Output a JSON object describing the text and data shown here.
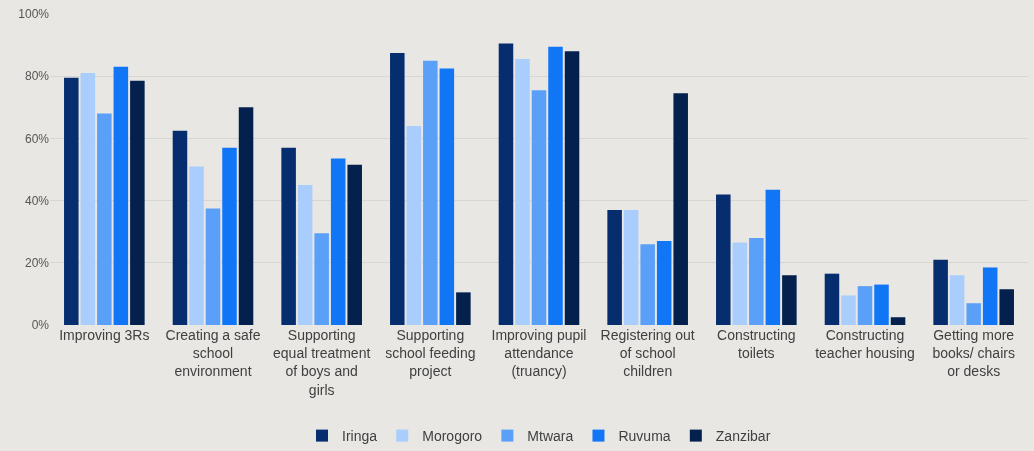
{
  "chart_data": {
    "type": "bar",
    "categories": [
      "Improving 3Rs",
      "Creating a safe school environment",
      "Supporting equal treatment of boys and girls",
      "Supporting school feeding project",
      "Improving pupil attendance (truancy)",
      "Registering out of school children",
      "Constructing toilets",
      "Constructing teacher housing",
      "Getting more books/ chairs or desks"
    ],
    "series": [
      {
        "name": "Iringa",
        "color": "#062e6f",
        "values": [
          79.5,
          62.5,
          57,
          87.5,
          90.5,
          37,
          42,
          16.5,
          21
        ]
      },
      {
        "name": "Morogoro",
        "color": "#a9cdfc",
        "values": [
          81,
          51,
          45,
          64,
          85.5,
          37,
          26.5,
          9.5,
          16
        ]
      },
      {
        "name": "Mtwara",
        "color": "#5aa0f8",
        "values": [
          68,
          37.5,
          29.5,
          85,
          75.5,
          26,
          28,
          12.5,
          7
        ]
      },
      {
        "name": "Ruvuma",
        "color": "#1176f6",
        "values": [
          83,
          57,
          53.5,
          82.5,
          89.5,
          27,
          43.5,
          13,
          18.5
        ]
      },
      {
        "name": "Zanzibar",
        "color": "#04214e",
        "values": [
          78.5,
          70,
          51.5,
          10.5,
          88,
          74.5,
          16,
          2.5,
          11.5
        ]
      }
    ],
    "ylim": [
      0,
      100
    ],
    "yticks": [
      {
        "value": 0,
        "label": "0%"
      },
      {
        "value": 20,
        "label": "20%"
      },
      {
        "value": 40,
        "label": "40%"
      },
      {
        "value": 60,
        "label": "60%"
      },
      {
        "value": 80,
        "label": "80%"
      },
      {
        "value": 100,
        "label": "100%"
      }
    ],
    "grid": "y",
    "legend": "bottom"
  }
}
